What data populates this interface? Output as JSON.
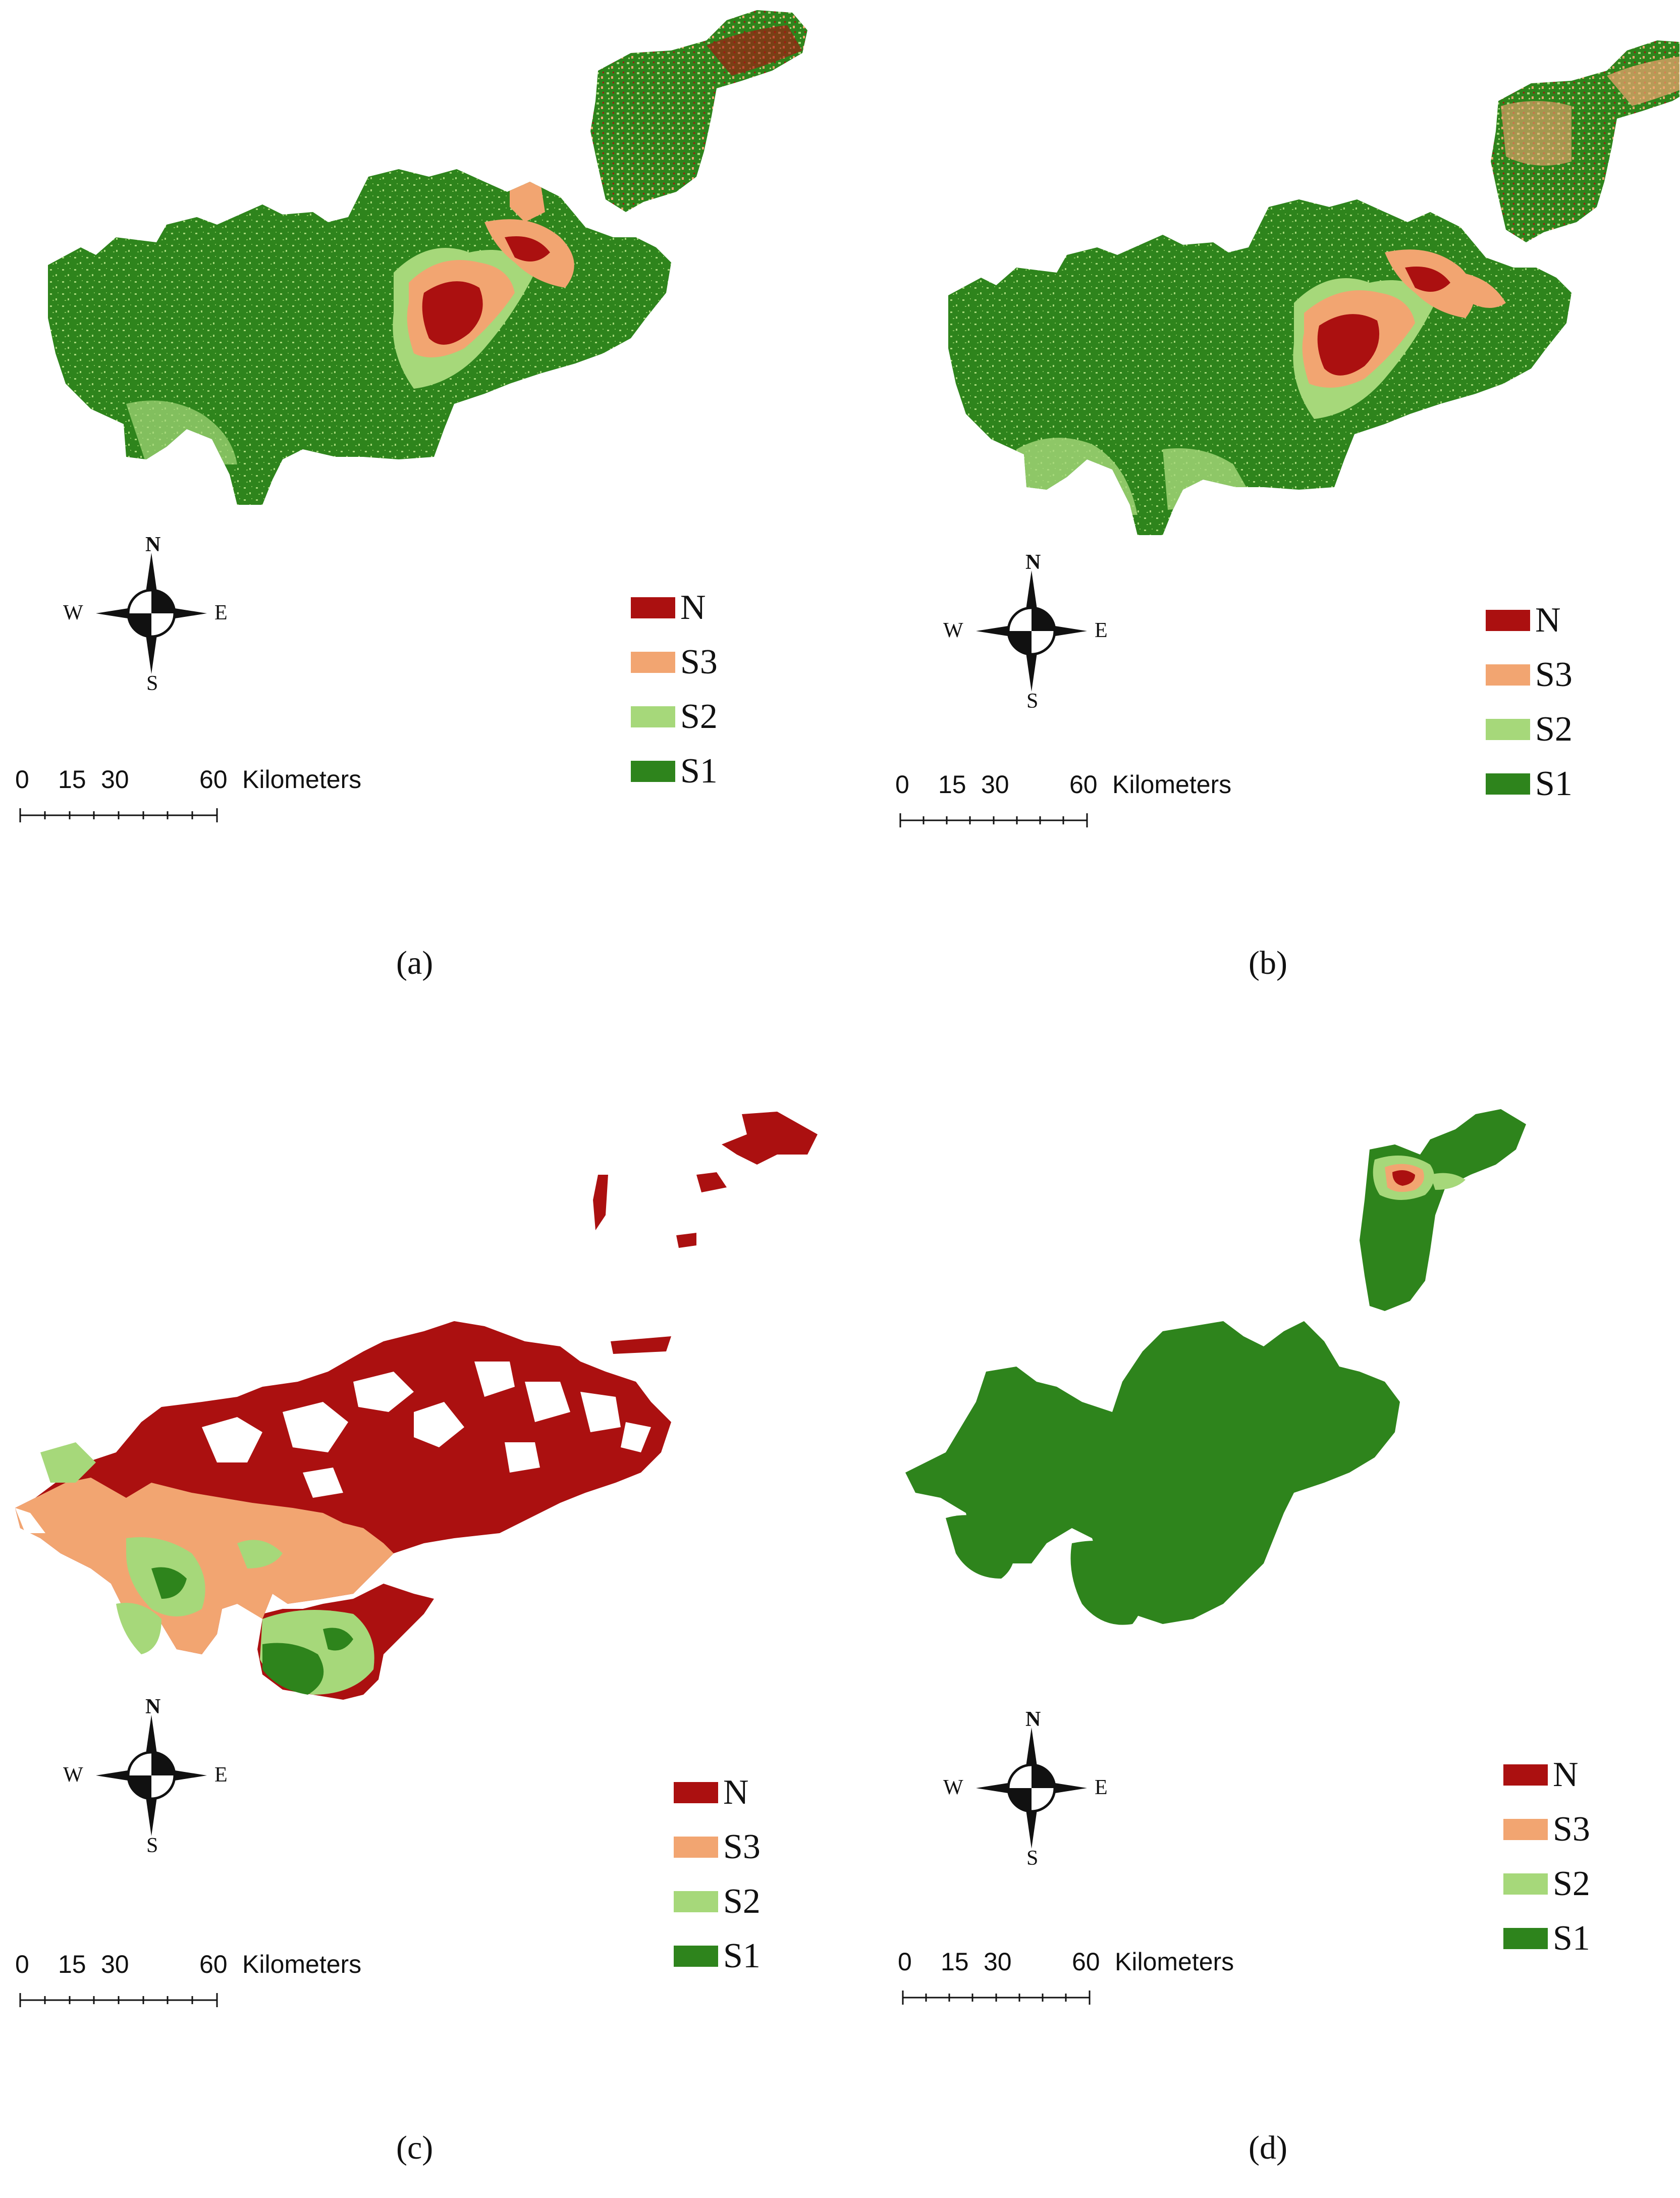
{
  "colors": {
    "N": "#ab1010",
    "S3": "#f2a571",
    "S2": "#a6d87a",
    "S1": "#2e841c"
  },
  "legend": {
    "items": [
      {
        "label": "N",
        "color": "#ab1010"
      },
      {
        "label": "S3",
        "color": "#f2a571"
      },
      {
        "label": "S2",
        "color": "#a6d87a"
      },
      {
        "label": "S1",
        "color": "#2e841c"
      }
    ]
  },
  "compass": {
    "north": "N",
    "south": "S",
    "east": "E",
    "west": "W"
  },
  "scale": {
    "ticks": [
      "0",
      "15",
      "30"
    ],
    "end": "60",
    "unit": "Kilometers"
  },
  "panels": [
    {
      "caption": "(a)",
      "map_class": "mixed"
    },
    {
      "caption": "(b)",
      "map_class": "mixed"
    },
    {
      "caption": "(c)",
      "map_class": "mostly-unsuitable"
    },
    {
      "caption": "(d)",
      "map_class": "highly-suitable"
    }
  ]
}
